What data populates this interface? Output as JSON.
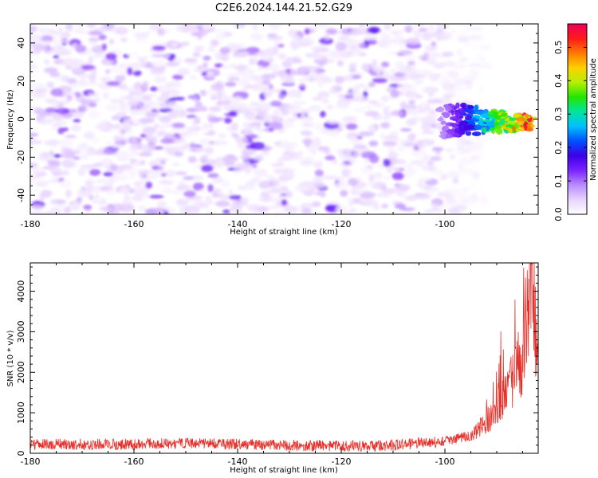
{
  "page_title": "C2E6.2024.144.21.52.G29",
  "chart_data": [
    {
      "type": "heatmap",
      "xlabel": "Height of straight line (km)",
      "ylabel": "Frequency (Hz)",
      "xlim": [
        -180,
        -82
      ],
      "ylim": [
        -50,
        50
      ],
      "x_ticks": [
        -180,
        -160,
        -140,
        -120,
        -100
      ],
      "y_ticks": [
        -40,
        -20,
        0,
        20,
        40
      ],
      "colorbar": {
        "label": "Normalized spectral amplitude",
        "range": [
          0.0,
          0.57
        ],
        "ticks": [
          "0.0",
          "0.1",
          "0.2",
          "0.3",
          "0.4",
          "0.5"
        ],
        "colormap": [
          "#ffffff",
          "#e8d4ff",
          "#b98cff",
          "#7b22ff",
          "#3d00e6",
          "#0050ff",
          "#00bfff",
          "#00e5a0",
          "#22e600",
          "#b4f000",
          "#ffd000",
          "#ff7a00",
          "#ff1a1a",
          "#f0005a"
        ]
      },
      "signal": {
        "description": "Strong spectral energy concentrated near 0 Hz for heights above about -100 km",
        "x_range": [
          -101,
          -83
        ],
        "center_frequency": 0,
        "peak_amplitude": 0.55
      },
      "background_noise_amplitude": 0.1,
      "noise_extent_x": [
        -180,
        -92
      ]
    },
    {
      "type": "line",
      "xlabel": "Height of straight line (km)",
      "ylabel": "SNR (10 * v/v)",
      "xlim": [
        -180,
        -82
      ],
      "ylim": [
        0,
        4700
      ],
      "x_ticks": [
        -180,
        -160,
        -140,
        -120,
        -100
      ],
      "y_ticks": [
        0,
        1000,
        2000,
        3000,
        4000
      ],
      "series": [
        {
          "color": "#e8302a",
          "baseline_points": [
            [
              -180,
              220
            ],
            [
              -160,
              220
            ],
            [
              -150,
              260
            ],
            [
              -140,
              220
            ],
            [
              -120,
              180
            ],
            [
              -110,
              200
            ],
            [
              -100,
              300
            ],
            [
              -95,
              420
            ],
            [
              -91,
              900
            ],
            [
              -88,
              1500
            ],
            [
              -85,
              2400
            ],
            [
              -83.2,
              4700
            ],
            [
              -82,
              1800
            ]
          ],
          "noise_amplitude": 280,
          "sample_count": 1400
        }
      ]
    }
  ]
}
